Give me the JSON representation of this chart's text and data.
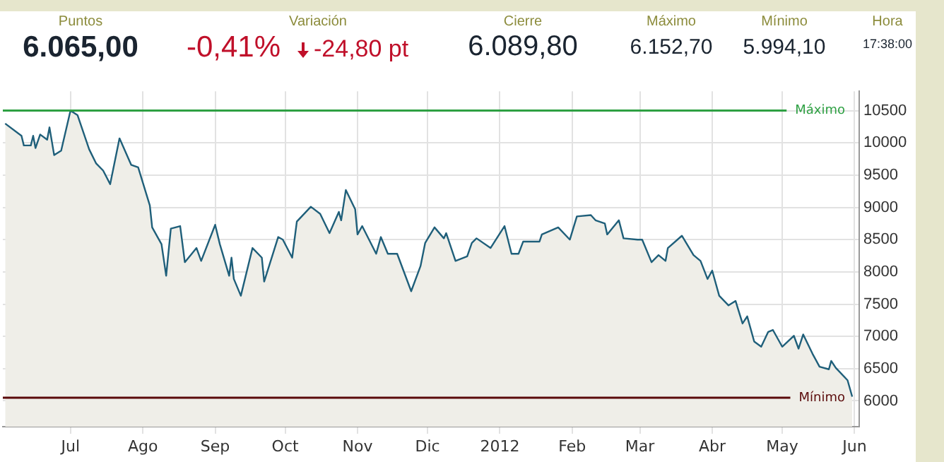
{
  "chart_data": {
    "type": "area",
    "annotations": [
      "Puntos",
      "6.065,00",
      "Variación",
      "-0,41%",
      "-24,80 pt",
      "Cierre",
      "6.089,80",
      "Máximo",
      "6.152,70",
      "Mínimo",
      "5.994,10",
      "Hora",
      "17:38:00"
    ],
    "x": [
      "2011-06-03",
      "2011-06-10",
      "2011-06-11",
      "2011-06-14",
      "2011-06-15",
      "2011-06-16",
      "2011-06-18",
      "2011-06-21",
      "2011-06-22",
      "2011-06-24",
      "2011-06-27",
      "2011-07-01",
      "2011-07-04",
      "2011-07-09",
      "2011-07-12",
      "2011-07-15",
      "2011-07-18",
      "2011-07-22",
      "2011-07-27",
      "2011-07-30",
      "2011-08-04",
      "2011-08-05",
      "2011-08-09",
      "2011-08-11",
      "2011-08-13",
      "2011-08-17",
      "2011-08-19",
      "2011-08-24",
      "2011-08-26",
      "2011-09-01",
      "2011-09-03",
      "2011-09-07",
      "2011-09-08",
      "2011-09-09",
      "2011-09-12",
      "2011-09-17",
      "2011-09-21",
      "2011-09-22",
      "2011-09-28",
      "2011-09-30",
      "2011-10-04",
      "2011-10-06",
      "2011-10-12",
      "2011-10-16",
      "2011-10-20",
      "2011-10-24",
      "2011-10-25",
      "2011-10-27",
      "2011-10-31",
      "2011-11-01",
      "2011-11-03",
      "2011-11-09",
      "2011-11-11",
      "2011-11-14",
      "2011-11-18",
      "2011-11-24",
      "2011-11-28",
      "2011-11-30",
      "2011-12-04",
      "2011-12-08",
      "2011-12-09",
      "2011-12-13",
      "2011-12-18",
      "2011-12-20",
      "2011-12-22",
      "2011-12-28",
      "2012-01-03",
      "2012-01-06",
      "2012-01-09",
      "2012-01-11",
      "2012-01-18",
      "2012-01-19",
      "2012-01-26",
      "2012-01-31",
      "2012-02-03",
      "2012-02-09",
      "2012-02-11",
      "2012-02-15",
      "2012-02-16",
      "2012-02-21",
      "2012-02-23",
      "2012-02-29",
      "2012-03-02",
      "2012-03-06",
      "2012-03-09",
      "2012-03-12",
      "2012-03-13",
      "2012-03-19",
      "2012-03-24",
      "2012-03-27",
      "2012-03-30",
      "2012-04-01",
      "2012-04-04",
      "2012-04-08",
      "2012-04-11",
      "2012-04-14",
      "2012-04-16",
      "2012-04-19",
      "2012-04-22",
      "2012-04-25",
      "2012-04-27",
      "2012-05-01",
      "2012-05-06",
      "2012-05-08",
      "2012-05-10",
      "2012-05-14",
      "2012-05-17",
      "2012-05-21",
      "2012-05-22",
      "2012-05-24",
      "2012-05-29",
      "2012-05-31"
    ],
    "series": [
      {
        "color": "#1f5f7a",
        "values": [
          10300,
          10110,
          9960,
          9960,
          10110,
          9920,
          10130,
          10050,
          10240,
          9810,
          9880,
          10500,
          10430,
          9900,
          9680,
          9570,
          9360,
          10070,
          9660,
          9620,
          9030,
          8690,
          8430,
          7940,
          8670,
          8710,
          8150,
          8370,
          8170,
          8730,
          8430,
          7940,
          8220,
          7890,
          7630,
          8370,
          8220,
          7850,
          8540,
          8500,
          8220,
          8780,
          9010,
          8900,
          8600,
          8930,
          8800,
          9270,
          8970,
          8580,
          8710,
          8280,
          8540,
          8280,
          8280,
          7700,
          8090,
          8450,
          8690,
          8520,
          8600,
          8170,
          8240,
          8450,
          8520,
          8370,
          8710,
          8280,
          8280,
          8470,
          8470,
          8580,
          8690,
          8500,
          8860,
          8880,
          8800,
          8750,
          8580,
          8800,
          8520,
          8500,
          8500,
          8150,
          8260,
          8170,
          8370,
          8560,
          8260,
          8170,
          7890,
          8020,
          7630,
          7480,
          7550,
          7200,
          7310,
          6920,
          6840,
          7070,
          7100,
          6840,
          7010,
          6810,
          7030,
          6730,
          6530,
          6490,
          6620,
          6510,
          6320,
          6065
        ]
      }
    ],
    "xlim": [
      "2011-06-02",
      "2012-06-03"
    ],
    "xticks": [
      {
        "value": "2011-07-01",
        "label": "Jul"
      },
      {
        "value": "2011-08-01",
        "label": "Ago"
      },
      {
        "value": "2011-09-01",
        "label": "Sep"
      },
      {
        "value": "2011-10-01",
        "label": "Oct"
      },
      {
        "value": "2011-11-01",
        "label": "Nov"
      },
      {
        "value": "2011-12-01",
        "label": "Dic"
      },
      {
        "value": "2012-01-01",
        "label": "2012"
      },
      {
        "value": "2012-02-01",
        "label": "Feb"
      },
      {
        "value": "2012-03-01",
        "label": "Mar"
      },
      {
        "value": "2012-04-01",
        "label": "Abr"
      },
      {
        "value": "2012-05-01",
        "label": "May"
      },
      {
        "value": "2012-06-01",
        "label": "Jun"
      }
    ],
    "ylim": [
      5600,
      10800
    ],
    "yticks": [
      6000,
      6500,
      7000,
      7500,
      8000,
      8500,
      9000,
      9500,
      10000,
      10500
    ],
    "ref_lines": [
      {
        "axis": "y",
        "value": 10500,
        "label": "Máximo",
        "color": "#2ea043"
      },
      {
        "axis": "y",
        "value": 6050,
        "label": "Mínimo",
        "color": "#5a0a0a"
      }
    ],
    "grid": true,
    "legend": false,
    "marker": "none",
    "line_style": "solid"
  }
}
